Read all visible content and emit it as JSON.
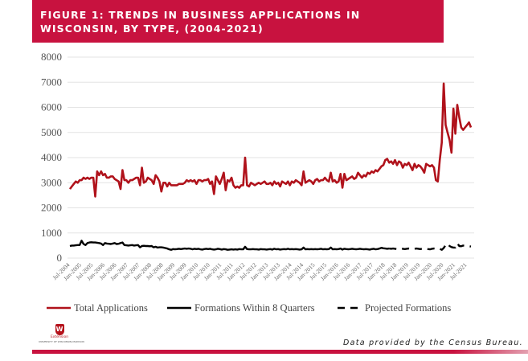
{
  "figure": {
    "title": "FIGURE 1: TRENDS IN BUSINESS APPLICATIONS IN WISCONSIN, BY TYPE, (2004-2021)",
    "source": "Data provided by the Census Bureau.",
    "logo": {
      "name": "Extension",
      "subtitle": "UNIVERSITY OF WISCONSIN-MADISON"
    }
  },
  "chart_data": {
    "type": "line",
    "title": "",
    "xlabel": "",
    "ylabel": "",
    "ylim": [
      0,
      8000
    ],
    "yticks": [
      "0",
      "1000",
      "2000",
      "3000",
      "4000",
      "5000",
      "6000",
      "7000",
      "8000"
    ],
    "grid": true,
    "legend_position": "bottom",
    "start": "2004-07",
    "frequency": "monthly",
    "xticks": [
      "Jul-2004",
      "Jan-2005",
      "Jul-2005",
      "Jan-2006",
      "Jul-2006",
      "Jan-2007",
      "Jul-2007",
      "Jan-2008",
      "Jul-2008",
      "Jan-2009",
      "Jul-2009",
      "Jan-2010",
      "Jul-2010",
      "Jan-2011",
      "Jul-2011",
      "Jan-2012",
      "Jul-2012",
      "Jan-2013",
      "Jul-2013",
      "Jan-2014",
      "Jul-2014",
      "Jan-2015",
      "Jul-2015",
      "Jan-2016",
      "Jul-2016",
      "Jan-2017",
      "Jul-2017",
      "Jan-2018",
      "Jul-2018",
      "Jan-2019",
      "Jul-2019",
      "Jan-2020",
      "Jul-2020",
      "Jan-2021",
      "Jul-2021"
    ],
    "series": [
      {
        "name": "Total Applications",
        "color": "#b0121b",
        "style": "solid",
        "values": [
          2750,
          2850,
          2950,
          3050,
          3000,
          3100,
          3100,
          3200,
          3150,
          3200,
          3150,
          3200,
          3200,
          2450,
          3450,
          3300,
          3450,
          3300,
          3350,
          3200,
          3200,
          3250,
          3250,
          3150,
          3100,
          3050,
          2750,
          3500,
          3100,
          3100,
          3000,
          3100,
          3100,
          3150,
          3200,
          3200,
          2900,
          3600,
          3000,
          3050,
          3200,
          3150,
          3100,
          2950,
          3300,
          3200,
          3050,
          2650,
          3000,
          3000,
          2850,
          3000,
          2900,
          2900,
          2900,
          2900,
          2950,
          2950,
          2950,
          3000,
          3100,
          3050,
          3100,
          3050,
          3100,
          2950,
          3100,
          3100,
          3050,
          3100,
          3100,
          3150,
          2950,
          3050,
          2550,
          3250,
          3100,
          2950,
          3150,
          3400,
          2700,
          3100,
          3050,
          3200,
          2900,
          2800,
          2850,
          2800,
          2900,
          2900,
          4000,
          2900,
          2850,
          3000,
          2950,
          2900,
          2950,
          3000,
          2950,
          3000,
          3050,
          2950,
          2950,
          3000,
          2900,
          3050,
          2950,
          3000,
          2850,
          3050,
          3000,
          2950,
          3050,
          2900,
          3050,
          3000,
          3100,
          3050,
          3000,
          2900,
          3450,
          3000,
          3050,
          3100,
          3050,
          2950,
          3100,
          3150,
          3050,
          3100,
          3100,
          3200,
          3100,
          3050,
          3400,
          3050,
          3100,
          3000,
          3050,
          3350,
          2800,
          3350,
          3100,
          3150,
          3200,
          3250,
          3150,
          3200,
          3400,
          3300,
          3200,
          3300,
          3250,
          3400,
          3350,
          3450,
          3400,
          3500,
          3450,
          3550,
          3650,
          3700,
          3900,
          3950,
          3800,
          3850,
          3750,
          3900,
          3700,
          3850,
          3800,
          3600,
          3750,
          3700,
          3800,
          3650,
          3500,
          3750,
          3600,
          3700,
          3650,
          3550,
          3400,
          3750,
          3700,
          3650,
          3700,
          3600,
          3100,
          3050,
          3900,
          4600,
          6950,
          5300,
          5000,
          4700,
          4200,
          5950,
          4950,
          6100,
          5600,
          5200,
          5100,
          5200,
          5300,
          5400,
          5200
        ]
      },
      {
        "name": "Formations Within 8 Quarters",
        "color": "#000000",
        "style": "solid",
        "values": [
          480,
          500,
          500,
          510,
          520,
          520,
          690,
          560,
          520,
          600,
          620,
          630,
          620,
          620,
          610,
          600,
          580,
          520,
          600,
          580,
          570,
          560,
          580,
          600,
          560,
          570,
          600,
          620,
          520,
          510,
          500,
          510,
          520,
          500,
          510,
          520,
          430,
          480,
          490,
          480,
          480,
          470,
          480,
          430,
          450,
          420,
          430,
          430,
          420,
          400,
          380,
          350,
          330,
          360,
          350,
          360,
          370,
          360,
          370,
          380,
          370,
          380,
          370,
          350,
          370,
          360,
          370,
          350,
          340,
          360,
          370,
          360,
          370,
          350,
          340,
          350,
          370,
          360,
          340,
          360,
          350,
          330,
          340,
          350,
          340,
          350,
          340,
          360,
          350,
          350,
          450,
          360,
          350,
          350,
          360,
          350,
          350,
          340,
          360,
          350,
          350,
          340,
          350,
          360,
          340,
          370,
          350,
          360,
          340,
          350,
          360,
          350,
          370,
          350,
          360,
          350,
          360,
          350,
          340,
          350,
          420,
          350,
          360,
          350,
          360,
          350,
          360,
          350,
          360,
          370,
          350,
          360,
          350,
          360,
          420,
          350,
          360,
          350,
          360,
          380,
          340,
          370,
          360,
          350,
          360,
          370,
          360,
          350,
          360,
          370,
          360,
          350,
          360,
          350,
          340,
          360,
          370,
          350,
          360,
          380,
          410,
          390,
          380,
          370,
          380
        ]
      },
      {
        "name": "Projected Formations",
        "color": "#000000",
        "style": "dashed",
        "start_index": 164,
        "values": [
          380,
          370,
          380,
          370,
          360,
          370,
          380,
          370,
          360,
          370,
          380,
          370,
          360,
          370,
          380,
          370,
          360,
          370,
          380,
          370,
          360,
          350,
          370,
          380,
          370,
          360,
          370,
          330,
          400,
          520,
          580,
          480,
          440,
          420,
          420,
          590,
          480,
          470,
          500,
          490,
          480,
          470,
          460
        ]
      }
    ]
  }
}
